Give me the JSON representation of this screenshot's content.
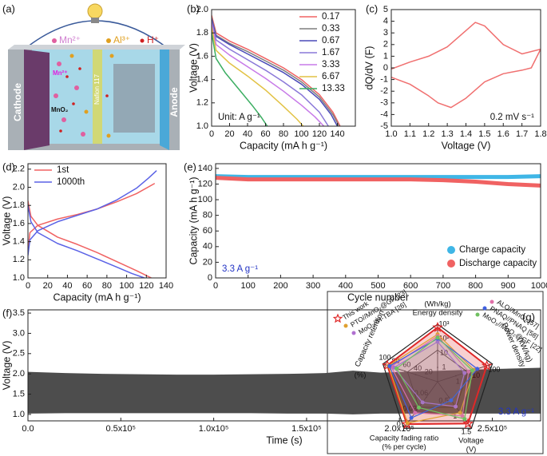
{
  "schematic": {
    "label": "(a)",
    "ions": [
      "Mn²⁺",
      "Al³⁺",
      "H⁺"
    ],
    "cathode": "Cathode",
    "anode": "Anode",
    "membrane": "Nafion 117",
    "electrode_material": "MnO₂",
    "ion_at_cathode": "Mn²⁺"
  },
  "chart_data": [
    {
      "type": "line",
      "label": "(b)",
      "xlabel": "Capacity (mA h g⁻¹)",
      "ylabel": "Voltage (V)",
      "xlim": [
        0,
        160
      ],
      "xticks": [
        0,
        20,
        40,
        60,
        80,
        100,
        120,
        140
      ],
      "ylim": [
        1.0,
        2.0
      ],
      "yticks": [
        {
          "value": 1.0,
          "label": "1.0"
        },
        1.2,
        1.4,
        1.6,
        1.8,
        {
          "value": 2.0,
          "label": "2.0"
        }
      ],
      "annotation": "Unit: A g⁻¹",
      "annotation_position": "lower left",
      "legend": "upper right",
      "series": [
        {
          "name": "0.17",
          "color": "#f06262",
          "x": [
            0,
            5,
            20,
            40,
            60,
            80,
            100,
            120,
            135,
            143
          ],
          "values": [
            1.95,
            1.8,
            1.73,
            1.66,
            1.58,
            1.5,
            1.4,
            1.27,
            1.12,
            1.0
          ]
        },
        {
          "name": "0.33",
          "color": "#7f7f7f",
          "x": [
            0,
            5,
            20,
            40,
            60,
            80,
            100,
            120,
            135,
            142
          ],
          "values": [
            1.93,
            1.78,
            1.71,
            1.64,
            1.56,
            1.48,
            1.38,
            1.25,
            1.1,
            1.0
          ]
        },
        {
          "name": "0.67",
          "color": "#4a4ab8",
          "x": [
            0,
            5,
            20,
            40,
            60,
            80,
            100,
            120,
            133,
            140
          ],
          "values": [
            1.92,
            1.77,
            1.7,
            1.62,
            1.54,
            1.46,
            1.36,
            1.23,
            1.1,
            1.0
          ]
        },
        {
          "name": "1.67",
          "color": "#8a78d8",
          "x": [
            0,
            5,
            20,
            40,
            60,
            80,
            100,
            120,
            130
          ],
          "values": [
            1.9,
            1.74,
            1.66,
            1.57,
            1.48,
            1.38,
            1.27,
            1.12,
            1.0
          ]
        },
        {
          "name": "3.33",
          "color": "#c77ae8",
          "x": [
            0,
            5,
            20,
            40,
            60,
            80,
            100,
            115,
            125
          ],
          "values": [
            1.88,
            1.7,
            1.61,
            1.51,
            1.41,
            1.3,
            1.18,
            1.08,
            1.0
          ]
        },
        {
          "name": "6.67",
          "color": "#e2c244",
          "x": [
            0,
            5,
            20,
            40,
            60,
            80,
            95,
            102
          ],
          "values": [
            1.85,
            1.65,
            1.54,
            1.43,
            1.31,
            1.17,
            1.06,
            1.0
          ]
        },
        {
          "name": "13.33",
          "color": "#3cae62",
          "x": [
            0,
            5,
            15,
            30,
            45,
            55,
            62
          ],
          "values": [
            1.8,
            1.58,
            1.46,
            1.32,
            1.18,
            1.08,
            1.0
          ]
        }
      ]
    },
    {
      "type": "line",
      "label": "(c)",
      "xlabel": "Voltage (V)",
      "ylabel": "dQ/dV (F)",
      "xlim": [
        1.0,
        1.8
      ],
      "xticks": [
        {
          "value": 1.0,
          "label": "1.0"
        },
        1.1,
        1.2,
        1.3,
        1.4,
        1.5,
        1.6,
        1.7,
        1.8
      ],
      "ylim": [
        -5,
        5
      ],
      "yticks": [
        -5,
        -4,
        -3,
        -2,
        -1,
        0,
        1,
        2,
        3,
        4,
        5
      ],
      "annotation": "0.2 mV s⁻¹",
      "annotation_position": "lower right",
      "series": [
        {
          "color": "#f07070",
          "x": [
            1.0,
            1.1,
            1.2,
            1.3,
            1.4,
            1.45,
            1.5,
            1.6,
            1.7,
            1.8,
            1.75,
            1.7,
            1.6,
            1.5,
            1.4,
            1.32,
            1.25,
            1.2,
            1.1,
            1.0
          ],
          "values": [
            -0.1,
            0.5,
            1.0,
            1.8,
            3.2,
            3.9,
            3.6,
            2.0,
            1.2,
            1.6,
            0.0,
            -0.2,
            -0.5,
            -1.2,
            -2.6,
            -3.4,
            -3.0,
            -2.4,
            -1.4,
            -0.8
          ]
        }
      ]
    },
    {
      "type": "line",
      "label": "(d)",
      "xlabel": "Capacity (mA h g⁻¹)",
      "ylabel": "Voltage (V)",
      "xlim": [
        0,
        140
      ],
      "xticks": [
        0,
        20,
        40,
        60,
        80,
        100,
        120,
        140
      ],
      "ylim": [
        1.0,
        2.26
      ],
      "yticks": [
        {
          "value": 1.0,
          "label": "1.0"
        },
        1.2,
        1.4,
        1.6,
        1.8,
        {
          "value": 2.0,
          "label": "2.0"
        },
        2.2
      ],
      "legend": "upper left",
      "series": [
        {
          "name": "1st",
          "color": "#f06262",
          "curves": [
            {
              "x": [
                0,
                2,
                10,
                30,
                50,
                70,
                90,
                110,
                128
              ],
              "values": [
                1.3,
                1.5,
                1.58,
                1.65,
                1.7,
                1.76,
                1.84,
                1.93,
                2.04
              ]
            },
            {
              "x": [
                0,
                3,
                10,
                30,
                50,
                70,
                90,
                110,
                125
              ],
              "values": [
                1.85,
                1.68,
                1.58,
                1.45,
                1.37,
                1.28,
                1.18,
                1.08,
                1.0
              ]
            }
          ]
        },
        {
          "name": "1000th",
          "color": "#5a62e6",
          "curves": [
            {
              "x": [
                0,
                2,
                10,
                30,
                50,
                70,
                90,
                110,
                122,
                130
              ],
              "values": [
                1.25,
                1.42,
                1.52,
                1.62,
                1.69,
                1.76,
                1.86,
                1.99,
                2.1,
                2.18
              ]
            },
            {
              "x": [
                0,
                3,
                10,
                30,
                50,
                70,
                90,
                105,
                118
              ],
              "values": [
                1.8,
                1.62,
                1.5,
                1.38,
                1.3,
                1.21,
                1.12,
                1.05,
                1.0
              ]
            }
          ]
        }
      ]
    },
    {
      "type": "line",
      "label": "(e)",
      "xlabel": "Cycle number",
      "ylabel": "Capacity (mA h g⁻¹)",
      "xlim": [
        0,
        1000
      ],
      "xticks": [
        0,
        100,
        200,
        300,
        400,
        500,
        600,
        700,
        800,
        900,
        1000
      ],
      "ylim": [
        0,
        146
      ],
      "yticks": [
        0,
        20,
        40,
        60,
        80,
        100,
        120,
        140
      ],
      "annotation": "3.3 A g⁻¹",
      "annotation_position": "lower left",
      "annotation_color": "#2233c4",
      "legend": "lower right",
      "series": [
        {
          "name": "Charge capacity",
          "color": "#3fb6e6",
          "x": [
            0,
            100,
            200,
            300,
            400,
            500,
            600,
            700,
            800,
            900,
            1000
          ],
          "values": [
            130,
            129,
            129,
            129,
            129,
            129,
            129,
            129,
            129,
            129,
            130
          ]
        },
        {
          "name": "Discharge capacity",
          "color": "#f06262",
          "x": [
            0,
            100,
            200,
            300,
            400,
            500,
            600,
            700,
            800,
            900,
            1000
          ],
          "values": [
            128,
            126,
            126,
            126,
            126,
            126,
            126,
            125,
            123,
            120,
            118
          ]
        }
      ]
    },
    {
      "type": "band",
      "label": "(f)",
      "xlabel": "Time (s)",
      "ylabel": "Voltage (V)",
      "color": "#4d4d4d",
      "xlim": [
        0,
        276000
      ],
      "xticks": [
        {
          "value": 0,
          "label": "0.0"
        },
        {
          "value": 50000,
          "label": "0.5x10⁵"
        },
        {
          "value": 100000,
          "label": "1.0x10⁵"
        },
        {
          "value": 150000,
          "label": "1.5x10⁵"
        },
        {
          "value": 200000,
          "label": "2.0x10⁵"
        },
        {
          "value": 250000,
          "label": "2.5x10⁵"
        }
      ],
      "ylim": [
        0.84,
        3.58
      ],
      "yticks": [
        {
          "value": 1.0,
          "label": "1.0"
        },
        1.5,
        {
          "value": 2.0,
          "label": "2.0"
        },
        2.5,
        {
          "value": 3.0,
          "label": "3.0"
        },
        3.5
      ],
      "annotation": "3.3 A g⁻¹",
      "annotation_position": "lower right",
      "annotation_color": "#2233c4",
      "x": [
        0,
        20000,
        40000,
        60000,
        80000,
        100000,
        120000,
        140000,
        160000,
        175000,
        190000,
        210000,
        230000,
        250000,
        276000
      ],
      "upper": [
        2.05,
        2.02,
        2.0,
        1.99,
        1.98,
        1.98,
        1.99,
        2.0,
        2.02,
        2.08,
        2.03,
        2.06,
        2.09,
        2.12,
        2.15
      ],
      "lower": [
        1.02,
        1.03,
        1.03,
        1.03,
        1.03,
        1.03,
        1.03,
        1.02,
        1.02,
        1.0,
        1.02,
        1.02,
        1.02,
        1.02,
        1.02
      ]
    },
    {
      "type": "radar",
      "label": "(g)",
      "axes": [
        {
          "name": "Energy density",
          "unit": "(Wh/kg)",
          "range": [
            0.1,
            1000
          ],
          "log": true,
          "ticks": [
            1,
            10,
            {
              "value": 100,
              "label": "10²"
            },
            {
              "value": 1000,
              "label": "10³"
            }
          ]
        },
        {
          "name": "Power density",
          "unit": "(kW/kg)",
          "range": [
            0.1,
            100
          ],
          "log": true,
          "ticks": [
            1,
            10,
            100
          ]
        },
        {
          "name": "Voltage",
          "unit": "(V)",
          "range": [
            0,
            1.5
          ],
          "log": false,
          "ticks": [
            0.5,
            1,
            1.5
          ]
        },
        {
          "name": "Capacity fading ratio",
          "unit": "(% per cycle)",
          "range": [
            0.09,
            0
          ],
          "log": false,
          "ticks": [
            0.06,
            0.03,
            0
          ]
        },
        {
          "name": "Capacity retention",
          "unit": "(%)",
          "range": [
            0,
            100
          ],
          "log": false,
          "ticks": [
            20,
            40,
            60,
            80,
            100
          ]
        }
      ],
      "series": [
        {
          "name": "This work",
          "color": "#e02828",
          "marker": "star",
          "values": [
            600,
            50,
            1.35,
            0.008,
            92
          ]
        },
        {
          "name": "PTO//MnO₂@GF [23]",
          "color": "#e0a030",
          "marker": "circle",
          "values": [
            200,
            10,
            1.0,
            0.01,
            90
          ]
        },
        {
          "name": "MoO₃//H-TBA [26]",
          "color": "#b070d0",
          "marker": "circle",
          "values": [
            60,
            3,
            0.8,
            0.05,
            80
          ]
        },
        {
          "name": "ALO//MnO₂ [57]",
          "color": "#e070a8",
          "marker": "circle",
          "values": [
            150,
            5,
            1.1,
            0.03,
            85
          ]
        },
        {
          "name": "PNAQ//PNAQ [58]",
          "color": "#4060e0",
          "marker": "circle",
          "values": [
            100,
            15,
            0.6,
            0.02,
            88
          ]
        },
        {
          "name": "MoO₃//MnO₂@GF [22]",
          "color": "#70c060",
          "marker": "circle",
          "values": [
            120,
            8,
            1.2,
            0.04,
            75
          ]
        }
      ]
    }
  ]
}
